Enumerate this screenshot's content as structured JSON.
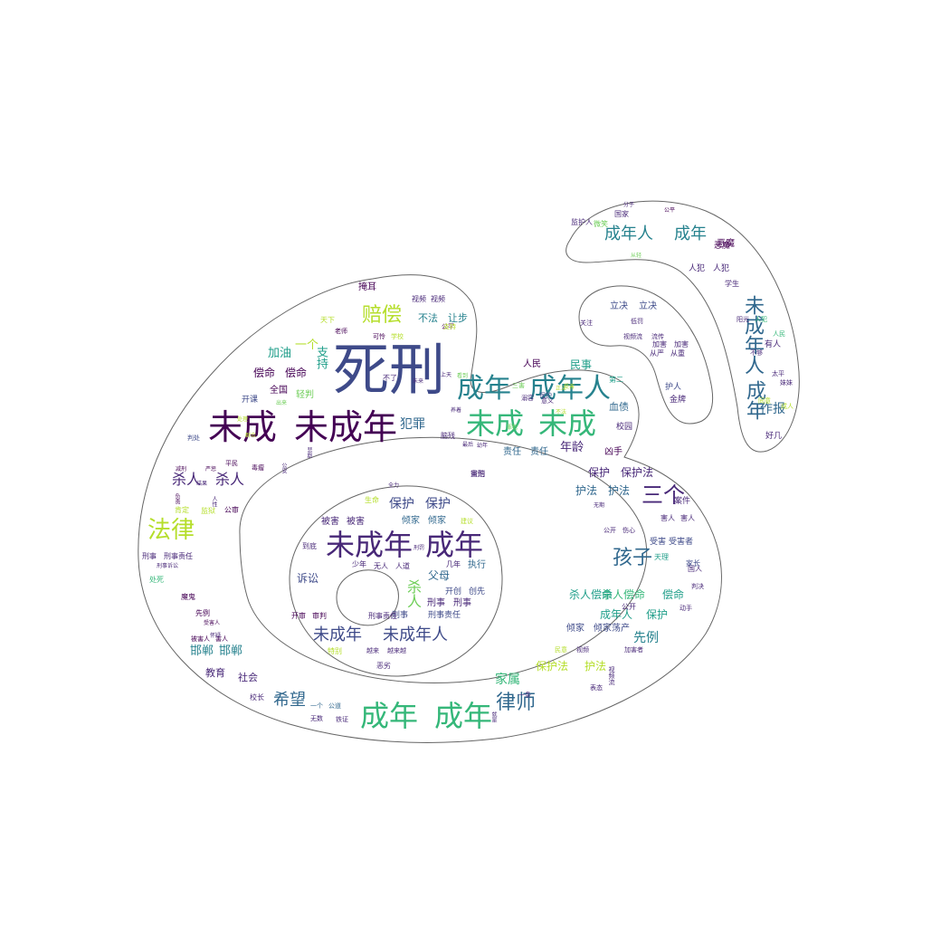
{
  "title": "",
  "mask_shape": "weibo-logo",
  "palette": [
    "#440154",
    "#482878",
    "#3e4a89",
    "#31688e",
    "#26828e",
    "#1f9e89",
    "#35b779",
    "#6ece58",
    "#b5de2b",
    "#fde725"
  ],
  "words": [
    {
      "text": "死刑",
      "c": 2
    },
    {
      "text": "未成",
      "c": 0
    },
    {
      "text": "未成年",
      "c": 0
    },
    {
      "text": "成年",
      "c": 4
    },
    {
      "text": "成年人",
      "c": 4
    },
    {
      "text": "未成",
      "c": 6
    },
    {
      "text": "未成",
      "c": 6
    },
    {
      "text": "未成年",
      "c": 1
    },
    {
      "text": "成年",
      "c": 1
    },
    {
      "text": "成年",
      "c": 6
    },
    {
      "text": "成年",
      "c": 6
    },
    {
      "text": "法律",
      "c": 8
    },
    {
      "text": "赔偿",
      "c": 8
    },
    {
      "text": "孩子",
      "c": 3
    },
    {
      "text": "三个",
      "c": 1
    },
    {
      "text": "律师",
      "c": 3
    },
    {
      "text": "未成年",
      "c": 2
    },
    {
      "text": "未成年人",
      "c": 2
    },
    {
      "text": "成年人",
      "c": 4
    },
    {
      "text": "成年",
      "c": 4
    },
    {
      "text": "未成年人",
      "c": 3
    },
    {
      "text": "成年",
      "c": 3
    },
    {
      "text": "杀人",
      "c": 1
    },
    {
      "text": "杀人",
      "c": 1
    },
    {
      "text": "希望",
      "c": 3
    },
    {
      "text": "犯罪",
      "c": 3
    },
    {
      "text": "保护",
      "c": 2
    },
    {
      "text": "保护",
      "c": 2
    },
    {
      "text": "加油",
      "c": 5
    },
    {
      "text": "一个",
      "c": 8
    },
    {
      "text": "支持",
      "c": 5
    },
    {
      "text": "偿命",
      "c": 0
    },
    {
      "text": "偿命",
      "c": 0
    },
    {
      "text": "年龄",
      "c": 1
    },
    {
      "text": "先例",
      "c": 4
    },
    {
      "text": "家属",
      "c": 6
    },
    {
      "text": "作报",
      "c": 3
    },
    {
      "text": "邯郸",
      "c": 4
    },
    {
      "text": "邯郸",
      "c": 4
    },
    {
      "text": "民事",
      "c": 5
    },
    {
      "text": "诉讼",
      "c": 2
    },
    {
      "text": "人民",
      "c": 0
    },
    {
      "text": "父母",
      "c": 3
    },
    {
      "text": "杀人",
      "c": 7
    },
    {
      "text": "杀人偿命",
      "c": 6
    },
    {
      "text": "杀人偿命",
      "c": 5
    },
    {
      "text": "偿命",
      "c": 5
    },
    {
      "text": "保护",
      "c": 1
    },
    {
      "text": "保护法",
      "c": 1
    },
    {
      "text": "护法",
      "c": 3
    },
    {
      "text": "护法",
      "c": 3
    },
    {
      "text": "成年人",
      "c": 5
    },
    {
      "text": "保护",
      "c": 5
    },
    {
      "text": "保护法",
      "c": 8
    },
    {
      "text": "护法",
      "c": 8
    },
    {
      "text": "倾家",
      "c": 2
    },
    {
      "text": "倾家荡产",
      "c": 2
    },
    {
      "text": "倾家",
      "c": 3
    },
    {
      "text": "倾家",
      "c": 3
    },
    {
      "text": "被害",
      "c": 1
    },
    {
      "text": "被害",
      "c": 1
    },
    {
      "text": "责任",
      "c": 3
    },
    {
      "text": "责任",
      "c": 3
    },
    {
      "text": "血债",
      "c": 3
    },
    {
      "text": "教育",
      "c": 1
    },
    {
      "text": "社会",
      "c": 1
    },
    {
      "text": "不法",
      "c": 4
    },
    {
      "text": "让步",
      "c": 4
    },
    {
      "text": "掩耳",
      "c": 0
    },
    {
      "text": "视频",
      "c": 1
    },
    {
      "text": "视频",
      "c": 1
    },
    {
      "text": "开课",
      "c": 2
    },
    {
      "text": "全国",
      "c": 0
    },
    {
      "text": "轻判",
      "c": 7
    },
    {
      "text": "执行",
      "c": 3
    },
    {
      "text": "刑事",
      "c": 1
    },
    {
      "text": "刑事",
      "c": 1
    },
    {
      "text": "开创",
      "c": 2
    },
    {
      "text": "创先",
      "c": 2
    },
    {
      "text": "恶魔",
      "c": 0
    },
    {
      "text": "人犯",
      "c": 1
    },
    {
      "text": "人犯",
      "c": 1
    },
    {
      "text": "立决",
      "c": 2
    },
    {
      "text": "立决",
      "c": 2
    },
    {
      "text": "国家",
      "c": 1
    },
    {
      "text": "护人",
      "c": 2
    },
    {
      "text": "金牌",
      "c": 1
    },
    {
      "text": "学生",
      "c": 1
    },
    {
      "text": "有人",
      "c": 1
    },
    {
      "text": "好几",
      "c": 1
    },
    {
      "text": "凶手",
      "c": 0
    },
    {
      "text": "校园",
      "c": 1
    },
    {
      "text": "案件",
      "c": 1
    },
    {
      "text": "受害",
      "c": 2
    },
    {
      "text": "受害者",
      "c": 2
    },
    {
      "text": "刑事",
      "c": 2
    },
    {
      "text": "刑事责任",
      "c": 2
    },
    {
      "text": "魔鬼",
      "c": 0
    },
    {
      "text": "少年",
      "c": 1
    },
    {
      "text": "无人",
      "c": 1
    },
    {
      "text": "人道",
      "c": 1
    },
    {
      "text": "几年",
      "c": 1
    },
    {
      "text": "刑事责任",
      "c": 1
    },
    {
      "text": "恶劣",
      "c": 1
    },
    {
      "text": "越来",
      "c": 1
    },
    {
      "text": "越来越",
      "c": 1
    },
    {
      "text": "一个",
      "c": 3
    },
    {
      "text": "公道",
      "c": 3
    },
    {
      "text": "无数",
      "c": 1
    },
    {
      "text": "铁证",
      "c": 1
    },
    {
      "text": "校长",
      "c": 1
    },
    {
      "text": "老师",
      "c": 0
    },
    {
      "text": "可怜",
      "c": 0
    },
    {
      "text": "学校",
      "c": 8
    },
    {
      "text": "天下",
      "c": 8
    },
    {
      "text": "公平",
      "c": 0
    },
    {
      "text": "判处",
      "c": 2
    },
    {
      "text": "平民",
      "c": 0
    },
    {
      "text": "毒瘤",
      "c": 0
    },
    {
      "text": "开审",
      "c": 0
    },
    {
      "text": "审判",
      "c": 0
    },
    {
      "text": "害人",
      "c": 1
    },
    {
      "text": "害人",
      "c": 1
    },
    {
      "text": "肯定",
      "c": 8
    },
    {
      "text": "监狱",
      "c": 8
    },
    {
      "text": "公审",
      "c": 0
    },
    {
      "text": "刑事",
      "c": 1
    },
    {
      "text": "刑事责任",
      "c": 1
    },
    {
      "text": "刑事诉讼",
      "c": 1
    },
    {
      "text": "处死",
      "c": 6
    },
    {
      "text": "先例",
      "c": 0
    },
    {
      "text": "受害人",
      "c": 0
    },
    {
      "text": "被害人",
      "c": 0
    },
    {
      "text": "害人",
      "c": 0
    },
    {
      "text": "加害",
      "c": 1
    },
    {
      "text": "加害",
      "c": 1
    },
    {
      "text": "从严",
      "c": 1
    },
    {
      "text": "从重",
      "c": 1
    },
    {
      "text": "低罚",
      "c": 1
    },
    {
      "text": "关注",
      "c": 1
    },
    {
      "text": "视频流",
      "c": 1
    },
    {
      "text": "流传",
      "c": 1
    },
    {
      "text": "恶魔",
      "c": 0
    },
    {
      "text": "微笑",
      "c": 7
    },
    {
      "text": "分子",
      "c": 1
    },
    {
      "text": "国人",
      "c": 1
    },
    {
      "text": "家长",
      "c": 2
    },
    {
      "text": "公开",
      "c": 1
    },
    {
      "text": "公开",
      "c": 1
    },
    {
      "text": "伤心",
      "c": 1
    },
    {
      "text": "动手",
      "c": 1
    },
    {
      "text": "判决",
      "c": 1
    },
    {
      "text": "表态",
      "c": 1
    },
    {
      "text": "一条",
      "c": 1
    },
    {
      "text": "民意",
      "c": 8
    },
    {
      "text": "视频",
      "c": 1
    },
    {
      "text": "视频流",
      "c": 1
    },
    {
      "text": "加害者",
      "c": 1
    },
    {
      "text": "天理",
      "c": 5
    },
    {
      "text": "特别",
      "c": 8
    },
    {
      "text": "建议",
      "c": 8
    },
    {
      "text": "生命",
      "c": 8
    },
    {
      "text": "到底",
      "c": 1
    },
    {
      "text": "第二",
      "c": 5
    },
    {
      "text": "不了",
      "c": 1
    },
    {
      "text": "脑残",
      "c": 1
    },
    {
      "text": "三害",
      "c": 7
    },
    {
      "text": "溺容",
      "c": 1
    },
    {
      "text": "从轻",
      "c": 7
    },
    {
      "text": "太平",
      "c": 1
    },
    {
      "text": "不够",
      "c": 1
    },
    {
      "text": "阳光",
      "c": 1
    },
    {
      "text": "人犯",
      "c": 6
    },
    {
      "text": "人民",
      "c": 6
    },
    {
      "text": "妹妹",
      "c": 1
    },
    {
      "text": "同意",
      "c": 8
    },
    {
      "text": "成人",
      "c": 8
    },
    {
      "text": "支持",
      "c": 8
    },
    {
      "text": "公平",
      "c": 0
    },
    {
      "text": "监护人",
      "c": 1
    },
    {
      "text": "保护",
      "c": 2
    },
    {
      "text": "意义",
      "c": 1
    },
    {
      "text": "无期",
      "c": 1
    },
    {
      "text": "全力",
      "c": 1
    },
    {
      "text": "刑罚",
      "c": 1
    },
    {
      "text": "正义",
      "c": 8
    },
    {
      "text": "受害",
      "c": 8
    },
    {
      "text": "不法",
      "c": 8
    },
    {
      "text": "减刑",
      "c": 0
    },
    {
      "text": "严惩",
      "c": 0
    },
    {
      "text": "养着",
      "c": 1
    },
    {
      "text": "负责",
      "c": 0
    },
    {
      "text": "结果",
      "c": 1
    },
    {
      "text": "处理",
      "c": 8
    },
    {
      "text": "群众",
      "c": 8
    },
    {
      "text": "人性",
      "c": 1
    },
    {
      "text": "怀疑",
      "c": 1
    },
    {
      "text": "悲剧",
      "c": 1
    },
    {
      "text": "出来",
      "c": 7
    },
    {
      "text": "就是",
      "c": 1
    },
    {
      "text": "公安",
      "c": 1
    },
    {
      "text": "上天",
      "c": 1
    },
    {
      "text": "看到",
      "c": 7
    },
    {
      "text": "未来",
      "c": 1
    },
    {
      "text": "最后",
      "c": 1
    },
    {
      "text": "幼年",
      "c": 1
    },
    {
      "text": "罪犯",
      "c": 7
    },
    {
      "text": "害怕",
      "c": 1
    },
    {
      "text": "量刑",
      "c": 1
    }
  ]
}
